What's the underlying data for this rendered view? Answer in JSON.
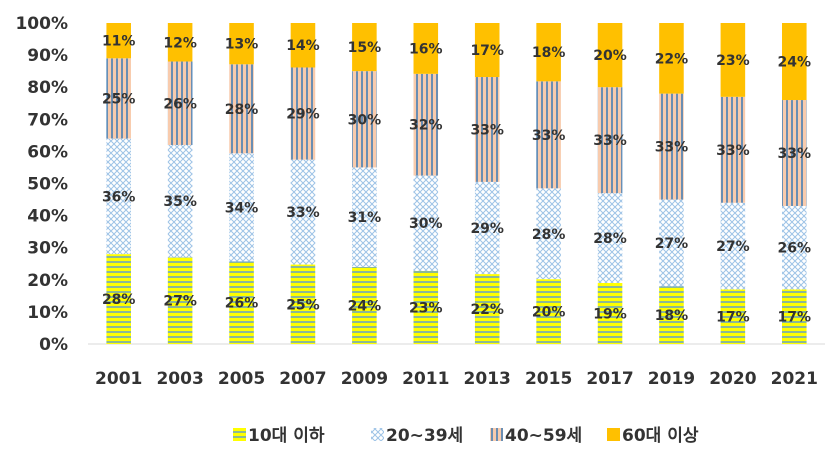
{
  "chart_data": {
    "type": "bar",
    "stacked": true,
    "percent": true,
    "categories": [
      "2001",
      "2003",
      "2005",
      "2007",
      "2009",
      "2011",
      "2013",
      "2015",
      "2017",
      "2019",
      "2020",
      "2021"
    ],
    "series": [
      {
        "name": "10대 이하",
        "values": [
          28,
          27,
          26,
          25,
          24,
          23,
          22,
          20,
          19,
          18,
          17,
          17
        ],
        "labels": [
          "28%",
          "27%",
          "26%",
          "25%",
          "24%",
          "23%",
          "22%",
          "20%",
          "19%",
          "18%",
          "17%",
          "17%"
        ],
        "color": "#ffff00",
        "pattern_color": "#5b9bd5",
        "pattern": "horizontal-lines"
      },
      {
        "name": "20~39세",
        "values": [
          36,
          35,
          34,
          33,
          31,
          30,
          29,
          28,
          28,
          27,
          27,
          26
        ],
        "labels": [
          "36%",
          "35%",
          "34%",
          "33%",
          "31%",
          "30%",
          "29%",
          "28%",
          "28%",
          "27%",
          "27%",
          "26%"
        ],
        "color": "#ffffff",
        "pattern_color": "#9dc3e6",
        "pattern": "diagonal-cross"
      },
      {
        "name": "40~59세",
        "values": [
          25,
          26,
          28,
          29,
          30,
          32,
          33,
          33,
          33,
          33,
          33,
          33
        ],
        "labels": [
          "25%",
          "26%",
          "28%",
          "29%",
          "30%",
          "32%",
          "33%",
          "33%",
          "33%",
          "33%",
          "33%",
          "33%"
        ],
        "color": "#f8cbad",
        "pattern_color": "#2e75b6",
        "pattern": "vertical-lines"
      },
      {
        "name": "60대 이상",
        "values": [
          11,
          12,
          13,
          14,
          15,
          16,
          17,
          18,
          20,
          22,
          23,
          24
        ],
        "labels": [
          "11%",
          "12%",
          "13%",
          "14%",
          "15%",
          "16%",
          "17%",
          "18%",
          "20%",
          "22%",
          "23%",
          "24%"
        ],
        "color": "#ffc000",
        "pattern_color": null,
        "pattern": "solid"
      }
    ],
    "y_ticks": [
      "0%",
      "10%",
      "20%",
      "30%",
      "40%",
      "50%",
      "60%",
      "70%",
      "80%",
      "90%",
      "100%"
    ],
    "ylim": [
      0,
      100
    ],
    "title": "",
    "xlabel": "",
    "ylabel": "",
    "grid": false,
    "legend_position": "bottom"
  }
}
